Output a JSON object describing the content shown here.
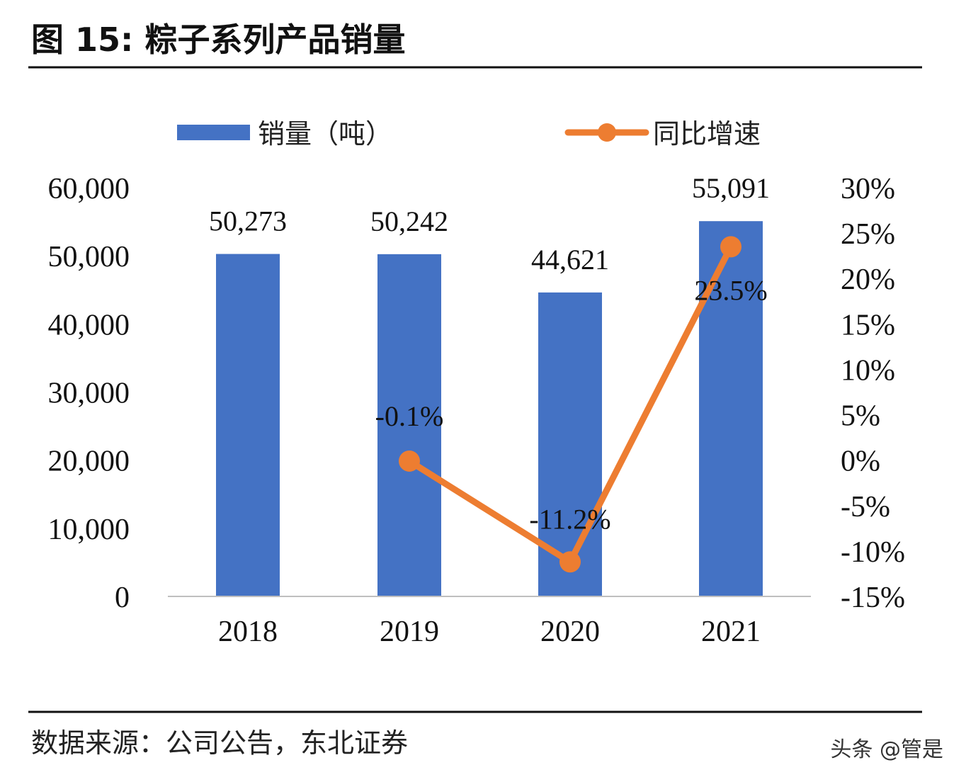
{
  "figure_title": "图  15:  粽子系列产品销量",
  "source": "数据来源：公司公告，东北证券",
  "watermark": "头条 @管是",
  "chart_data": {
    "type": "bar+line",
    "title": "",
    "categories": [
      "2018",
      "2019",
      "2020",
      "2021"
    ],
    "series": [
      {
        "name": "销量（吨）",
        "type": "bar",
        "axis": "left",
        "color": "#4472C4",
        "values": [
          50273,
          50242,
          44621,
          55091
        ],
        "labels": [
          "50,273",
          "50,242",
          "44,621",
          "55,091"
        ]
      },
      {
        "name": "同比增速",
        "type": "line",
        "axis": "right",
        "color": "#ED7D31",
        "values": [
          null,
          -0.1,
          -11.2,
          23.5
        ],
        "labels": [
          "",
          "-0.1%",
          "-11.2%",
          "23.5%"
        ]
      }
    ],
    "left_axis": {
      "ylim": [
        0,
        60000
      ],
      "ticks": [
        "0",
        "10,000",
        "20,000",
        "30,000",
        "40,000",
        "50,000",
        "60,000"
      ]
    },
    "right_axis": {
      "ylim": [
        -15,
        30
      ],
      "ticks": [
        "-15%",
        "-10%",
        "-5%",
        "0%",
        "5%",
        "10%",
        "15%",
        "20%",
        "25%",
        "30%"
      ]
    },
    "legend_position": "top",
    "grid": false
  }
}
